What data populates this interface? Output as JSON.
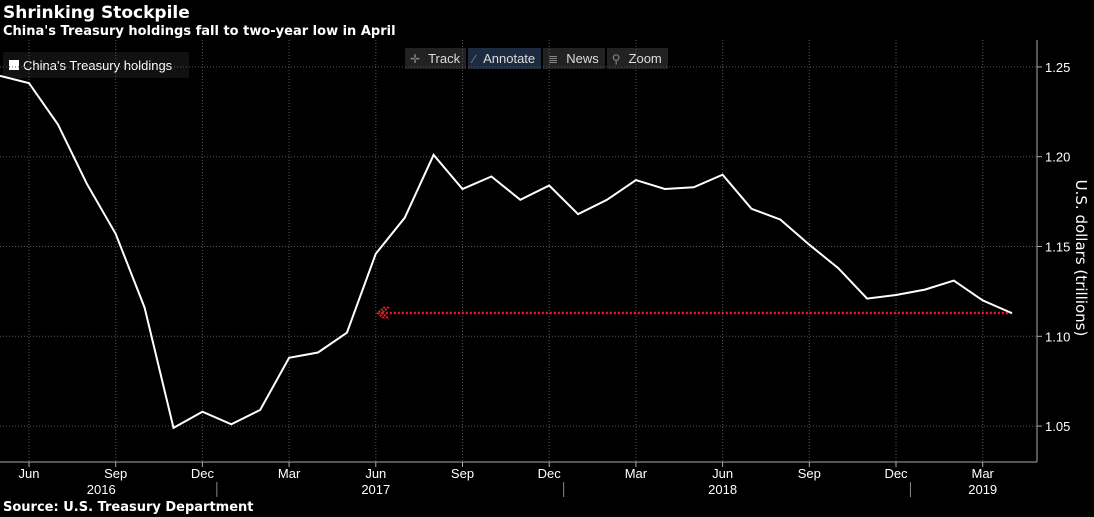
{
  "title": "Shrinking Stockpile",
  "subtitle": "China's Treasury holdings fall to two-year low in April",
  "legend_label": "China's Treasury holdings",
  "toolbar": {
    "track_label": "Track",
    "track_icon": "crosshair-icon",
    "annotate_label": "Annotate",
    "annotate_icon": "pencil-icon",
    "news_label": "News",
    "news_icon": "list-icon",
    "zoom_label": "Zoom",
    "zoom_icon": "magnifier-icon"
  },
  "source": "Source: U.S. Treasury Department",
  "colors": {
    "background": "#000000",
    "line": "#ffffff",
    "grid": "#555555",
    "reference_line": "#e0202a"
  },
  "chart_data": {
    "type": "line",
    "title": "Shrinking Stockpile",
    "subtitle": "China's Treasury holdings fall to two-year low in April",
    "ylabel": "U.S. dollars (trillions)",
    "xlabel": "",
    "ylim": [
      1.03,
      1.265
    ],
    "grid": true,
    "legend_position": "top-left",
    "y_ticks": [
      "1.05",
      "1.10",
      "1.15",
      "1.20",
      "1.25"
    ],
    "x_ticks": [
      "Jun",
      "Sep",
      "Dec",
      "Mar",
      "Jun",
      "Sep",
      "Dec",
      "Mar",
      "Jun",
      "Sep",
      "Dec",
      "Mar"
    ],
    "x_ticks_months": [
      0,
      3,
      6,
      9,
      12,
      15,
      18,
      21,
      24,
      27,
      30,
      33
    ],
    "year_labels": [
      {
        "label": "2016",
        "month": 2.5
      },
      {
        "label": "2017",
        "month": 12
      },
      {
        "label": "2018",
        "month": 24
      },
      {
        "label": "2019",
        "month": 33
      }
    ],
    "year_separators": [
      6.5,
      18.5,
      30.5
    ],
    "series": [
      {
        "name": "China's Treasury holdings",
        "x": [
          "2016-05",
          "2016-06",
          "2016-07",
          "2016-08",
          "2016-09",
          "2016-10",
          "2016-11",
          "2016-12",
          "2017-01",
          "2017-02",
          "2017-03",
          "2017-04",
          "2017-05",
          "2017-06",
          "2017-07",
          "2017-08",
          "2017-09",
          "2017-10",
          "2017-11",
          "2017-12",
          "2018-01",
          "2018-02",
          "2018-03",
          "2018-04",
          "2018-05",
          "2018-06",
          "2018-07",
          "2018-08",
          "2018-09",
          "2018-10",
          "2018-11",
          "2018-12",
          "2019-01",
          "2019-02",
          "2019-03",
          "2019-04"
        ],
        "values": [
          1.245,
          1.241,
          1.218,
          1.185,
          1.157,
          1.116,
          1.049,
          1.058,
          1.051,
          1.059,
          1.088,
          1.091,
          1.102,
          1.146,
          1.166,
          1.201,
          1.182,
          1.189,
          1.176,
          1.184,
          1.168,
          1.176,
          1.187,
          1.182,
          1.183,
          1.19,
          1.171,
          1.165,
          1.151,
          1.138,
          1.121,
          1.123,
          1.126,
          1.131,
          1.12,
          1.113
        ]
      }
    ],
    "reference_line": {
      "value": 1.113,
      "from": "2017-06",
      "to": "2019-04"
    }
  }
}
